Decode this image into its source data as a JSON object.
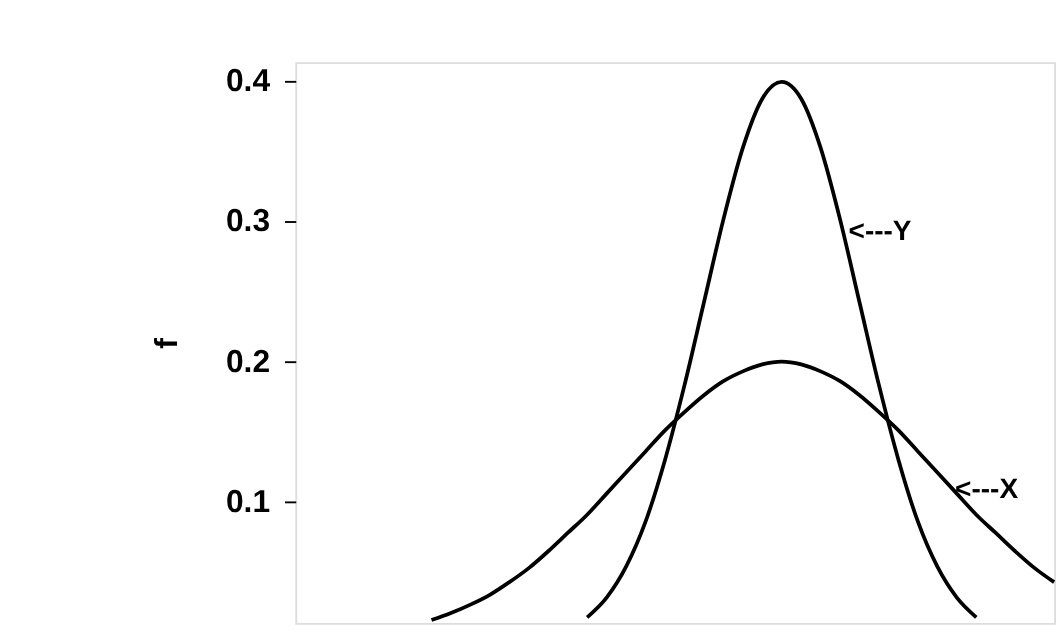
{
  "chart_data": {
    "type": "line",
    "ylabel": "f",
    "categories": [
      null,
      null,
      null,
      null,
      null,
      null,
      null,
      null,
      null,
      null,
      null,
      null,
      null,
      null,
      null,
      null,
      null,
      null,
      null,
      null,
      null,
      null,
      null,
      null,
      null,
      null,
      null,
      null,
      null,
      null,
      null,
      null,
      null,
      null,
      null,
      null,
      null,
      null,
      null,
      null
    ],
    "series": [
      {
        "color": "#000000",
        "values": [
          null,
          null,
          null,
          null,
          null,
          null,
          null,
          0.016,
          0.021,
          0.027,
          0.034,
          0.043,
          0.053,
          0.065,
          0.078,
          0.091,
          0.106,
          0.121,
          0.136,
          0.151,
          0.164,
          0.176,
          0.186,
          0.193,
          0.198,
          0.2,
          0.198,
          0.193,
          0.186,
          0.176,
          0.164,
          0.151,
          0.136,
          0.121,
          0.106,
          0.091,
          0.078,
          0.065,
          0.053,
          0.043
        ]
      },
      {
        "color": "#000000",
        "values": [
          null,
          null,
          null,
          null,
          null,
          null,
          null,
          null,
          null,
          null,
          null,
          null,
          null,
          null,
          null,
          0.018,
          0.032,
          0.054,
          0.086,
          0.13,
          0.183,
          0.242,
          0.301,
          0.352,
          0.387,
          0.399,
          0.387,
          0.352,
          0.301,
          0.242,
          0.183,
          0.13,
          0.086,
          0.054,
          0.032,
          0.018,
          null,
          null,
          null,
          null
        ]
      }
    ],
    "ylim": [
      0.014,
      0.413
    ],
    "yticks": [
      0.1,
      0.2,
      0.3,
      0.4
    ],
    "annotations": [
      "<---Y",
      "<---X"
    ],
    "grid": false,
    "tick_labels": "y",
    "line_style": "solid",
    "marker": "none"
  }
}
